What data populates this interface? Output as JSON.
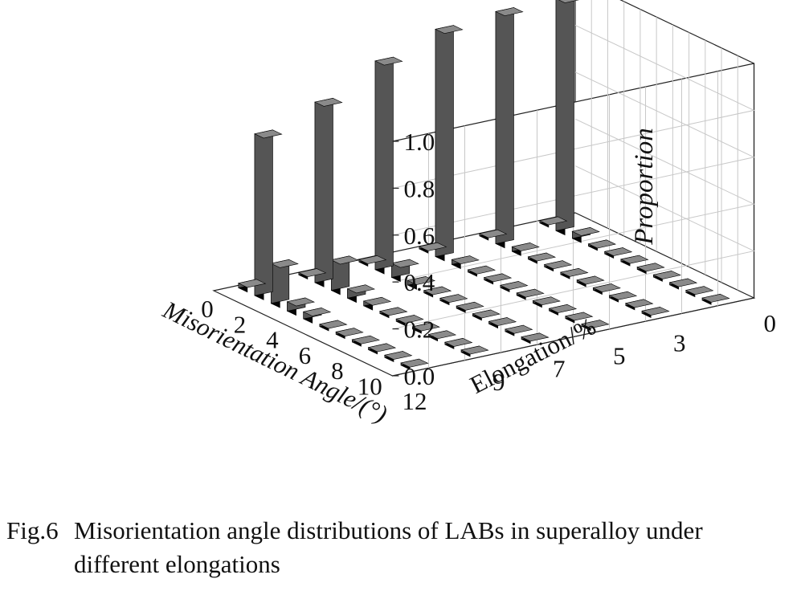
{
  "chart_data": {
    "type": "bar3d",
    "title": "",
    "xlabel": "Misorientation Angle/(°)",
    "ylabel": "Elongation/%",
    "zlabel": "Proportion",
    "x_ticks": [
      "0",
      "2",
      "4",
      "6",
      "8",
      "10"
    ],
    "y_ticks": [
      "0",
      "3",
      "5",
      "7",
      "9",
      "12"
    ],
    "z_ticks": [
      "0.0",
      "0.2",
      "0.4",
      "0.6",
      "0.8",
      "1.0"
    ],
    "xlim": [
      0,
      11
    ],
    "zlim": [
      0,
      1.0
    ],
    "grid": true,
    "bar_color": "#111111",
    "x": [
      0.5,
      1.5,
      2.5,
      3.5,
      4.5,
      5.5,
      6.5,
      7.5,
      8.5,
      9.5,
      10.5
    ],
    "series": [
      {
        "elongation": "12",
        "values": [
          0.02,
          0.69,
          0.17,
          0.04,
          0.03,
          0.01,
          0.01,
          0.01,
          0.01,
          0.01,
          0.01
        ]
      },
      {
        "elongation": "9",
        "values": [
          0.01,
          0.77,
          0.13,
          0.04,
          0.02,
          0.01,
          0.01,
          0.01,
          0.01,
          0.01,
          0.01
        ]
      },
      {
        "elongation": "7",
        "values": [
          0.01,
          0.89,
          0.06,
          0.02,
          0.01,
          0.01,
          0.01,
          0.01,
          0.01,
          0.01,
          0.01
        ]
      },
      {
        "elongation": "5",
        "values": [
          0.01,
          0.97,
          0.02,
          0.01,
          0.01,
          0.01,
          0.01,
          0.01,
          0.01,
          0.01,
          0.01
        ]
      },
      {
        "elongation": "3",
        "values": [
          0.01,
          0.99,
          0.02,
          0.01,
          0.01,
          0.01,
          0.01,
          0.01,
          0.01,
          0.01,
          0.01
        ]
      },
      {
        "elongation": "0",
        "values": [
          0.01,
          0.99,
          0.03,
          0.01,
          0.01,
          0.01,
          0.01,
          0.01,
          0.01,
          0.01,
          0.01
        ]
      }
    ]
  },
  "caption": {
    "id": "Fig.6",
    "line1": "Misorientation angle distributions of LABs in superalloy under",
    "line2": "different elongations"
  }
}
